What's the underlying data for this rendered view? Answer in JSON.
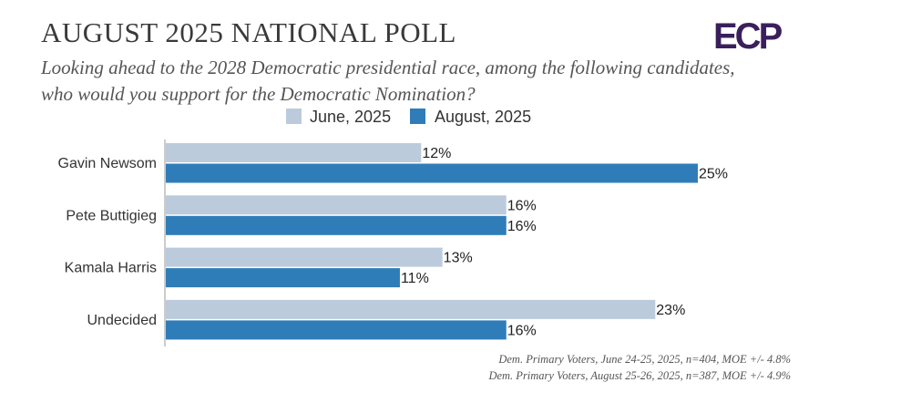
{
  "header": {
    "title": "AUGUST 2025 NATIONAL POLL",
    "subtitle_line1": "Looking ahead to the 2028 Democratic presidential race, among the following candidates,",
    "subtitle_line2": "who would you support for the Democratic Nomination?",
    "logo_text": "ECP"
  },
  "colors": {
    "june": "#bccbdc",
    "august": "#2f7db8",
    "axis": "#b0b0b0",
    "logo": "#3a1f5c"
  },
  "chart_data": {
    "type": "bar",
    "orientation": "horizontal",
    "title": "AUGUST 2025 NATIONAL POLL",
    "categories": [
      "Gavin Newsom",
      "Pete Buttigieg",
      "Kamala Harris",
      "Undecided"
    ],
    "series": [
      {
        "name": "June, 2025",
        "values": [
          12,
          16,
          13,
          23
        ],
        "labels": [
          "12%",
          "16%",
          "13%",
          "23%"
        ]
      },
      {
        "name": "August, 2025",
        "values": [
          25,
          16,
          11,
          16
        ],
        "labels": [
          "25%",
          "16%",
          "11%",
          "16%"
        ]
      }
    ],
    "xlim": [
      0,
      25
    ],
    "unit": "%",
    "legend": "top-center",
    "grid": false
  },
  "footer": {
    "source_june": "Dem. Primary Voters, June 24-25, 2025, n=404, MOE +/- 4.8%",
    "source_august": "Dem. Primary Voters, August 25-26, 2025, n=387, MOE +/- 4.9%"
  }
}
